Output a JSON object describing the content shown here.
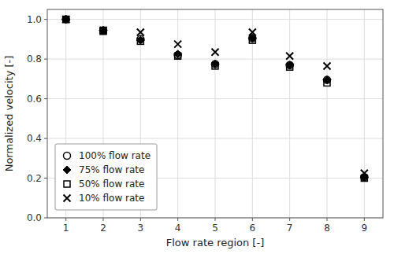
{
  "chart_data": {
    "type": "scatter",
    "x": [
      1,
      2,
      3,
      4,
      5,
      6,
      7,
      8,
      9
    ],
    "series": [
      {
        "name": "100% flow rate",
        "color": "#000000",
        "marker": "circle",
        "values": [
          1.0,
          0.945,
          0.9,
          0.82,
          0.775,
          0.905,
          0.77,
          0.695,
          0.205
        ]
      },
      {
        "name": "75% flow rate",
        "color": "#000000",
        "marker": "diamond",
        "values": [
          1.0,
          0.945,
          0.895,
          0.825,
          0.775,
          0.905,
          0.77,
          0.695,
          0.205
        ]
      },
      {
        "name": "50% flow rate",
        "color": "#000000",
        "marker": "square",
        "values": [
          1.0,
          0.94,
          0.89,
          0.815,
          0.765,
          0.895,
          0.76,
          0.68,
          0.2
        ]
      },
      {
        "name": "10% flow rate",
        "color": "#000000",
        "marker": "x",
        "values": [
          1.0,
          0.945,
          0.935,
          0.875,
          0.835,
          0.935,
          0.815,
          0.765,
          0.225
        ]
      }
    ],
    "xlabel": "Flow rate region [-]",
    "ylabel": "Normalized velocity [-]",
    "xlim": [
      0.5,
      9.5
    ],
    "ylim": [
      0,
      1.05
    ],
    "xticks": [
      1,
      2,
      3,
      4,
      5,
      6,
      7,
      8,
      9
    ],
    "yticks": [
      {
        "value": 0,
        "label": "0.0"
      },
      0.2,
      0.4,
      0.6,
      0.8,
      {
        "value": 1.0,
        "label": "1.0"
      }
    ],
    "grid": true,
    "legend": "lower left"
  }
}
